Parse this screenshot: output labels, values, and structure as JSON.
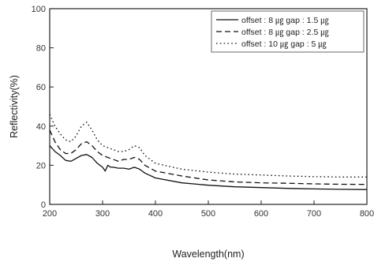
{
  "chart_data": {
    "type": "line",
    "title": "",
    "xlabel": "Wavelength(nm)",
    "ylabel": "Reflectivity(%)",
    "xlim": [
      200,
      800
    ],
    "ylim": [
      0,
      100
    ],
    "xticks": [
      200,
      300,
      400,
      500,
      600,
      700,
      800
    ],
    "yticks": [
      0,
      20,
      40,
      60,
      80,
      100
    ],
    "grid": false,
    "legend_position": "top-right",
    "series": [
      {
        "name": "offset : 8 ㎍ gap : 1.5 ㎍",
        "style": "solid",
        "color": "#111111",
        "x": [
          200,
          210,
          220,
          230,
          240,
          250,
          260,
          270,
          280,
          290,
          300,
          305,
          310,
          315,
          320,
          330,
          340,
          350,
          360,
          370,
          380,
          400,
          450,
          500,
          550,
          600,
          650,
          700,
          750,
          800
        ],
        "y": [
          30,
          27,
          25,
          22.5,
          22,
          23.5,
          25,
          25.5,
          24,
          21,
          19,
          17,
          20,
          19,
          19,
          18.5,
          18.5,
          18,
          19,
          18,
          16,
          13.5,
          11,
          9.8,
          9,
          8.6,
          8.2,
          7.9,
          7.7,
          7.6
        ]
      },
      {
        "name": "offset : 8 ㎍ gap : 2.5 ㎍",
        "style": "dashed",
        "color": "#111111",
        "x": [
          200,
          210,
          220,
          230,
          240,
          250,
          260,
          270,
          280,
          290,
          300,
          310,
          320,
          330,
          340,
          350,
          360,
          370,
          380,
          400,
          450,
          500,
          550,
          600,
          650,
          700,
          750,
          800
        ],
        "y": [
          38,
          32,
          28,
          26,
          26,
          28,
          31,
          32,
          30,
          27,
          25,
          24,
          23,
          22,
          23,
          23,
          24,
          23,
          20,
          17,
          14.5,
          12.5,
          11.5,
          11,
          10.8,
          10.5,
          10.3,
          10.2
        ]
      },
      {
        "name": "offset : 10 ㎍ gap : 5 ㎍",
        "style": "dotted",
        "color": "#111111",
        "x": [
          200,
          210,
          220,
          230,
          240,
          250,
          260,
          270,
          280,
          290,
          300,
          310,
          320,
          330,
          340,
          350,
          360,
          370,
          380,
          400,
          450,
          500,
          550,
          600,
          650,
          700,
          750,
          800
        ],
        "y": [
          46,
          40,
          36,
          33,
          32,
          35,
          40,
          42,
          38,
          33,
          30,
          29,
          28,
          27,
          27,
          28,
          30,
          29,
          25,
          21,
          18,
          16.5,
          15.5,
          15,
          14.5,
          14.2,
          14,
          14
        ]
      }
    ]
  }
}
